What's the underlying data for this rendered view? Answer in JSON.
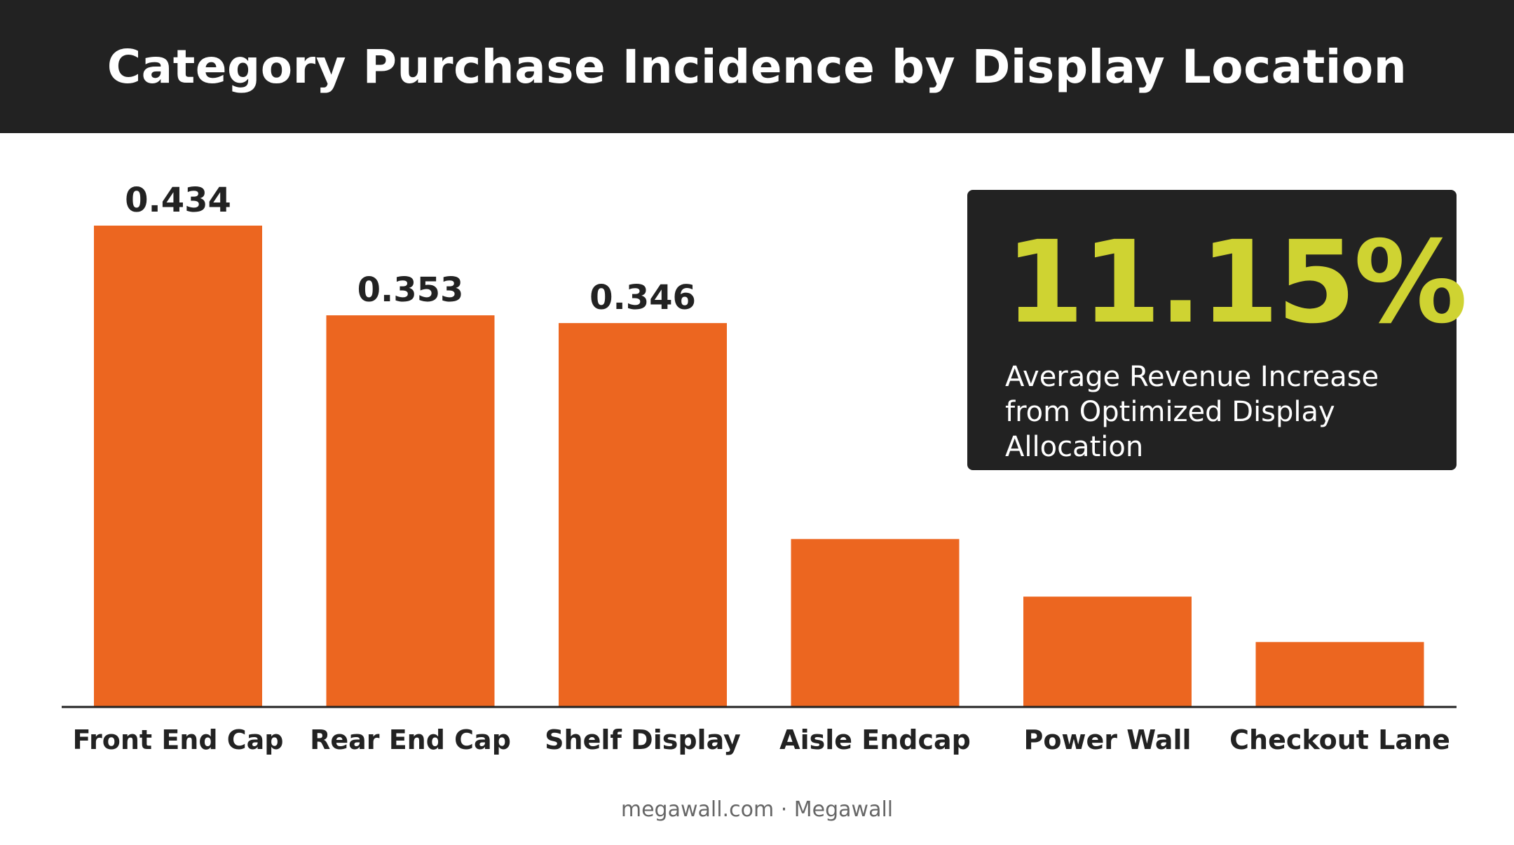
{
  "header": {
    "title": "Category Purchase Incidence by Display Location"
  },
  "chart_data": {
    "type": "bar",
    "categories": [
      "Front End Cap",
      "Rear End Cap",
      "Shelf Display",
      "Aisle Endcap",
      "Power Wall",
      "Checkout Lane"
    ],
    "values": [
      0.434,
      0.353,
      0.346,
      0.151,
      0.099,
      0.058
    ],
    "data_labels": [
      "0.434",
      "0.353",
      "0.346",
      "",
      "",
      ""
    ],
    "ylim": [
      0,
      0.45
    ],
    "grid": false,
    "bar_color": "#ec6620"
  },
  "stat": {
    "value": "11.15%",
    "label": "Average Revenue Increase from Optimized Display Allocation",
    "value_color": "#cfd332"
  },
  "footer": {
    "source": "megawall.com · Megawall"
  }
}
